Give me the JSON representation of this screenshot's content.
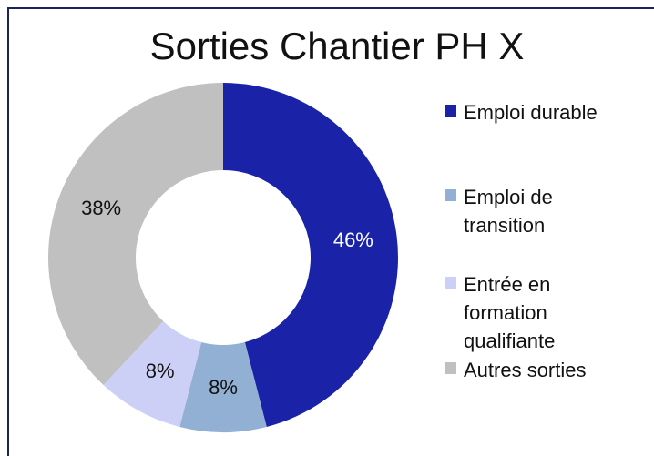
{
  "chart_data": {
    "type": "donut",
    "title": "Sorties Chantier PH X",
    "categories": [
      "Emploi durable",
      "Emploi de transition",
      "Entrée en formation qualifiante",
      "Autres sorties"
    ],
    "values": [
      46,
      8,
      8,
      38
    ],
    "value_labels": [
      "46%",
      "8%",
      "8%",
      "38%"
    ],
    "colors": [
      "#1a22a8",
      "#92b0d4",
      "#cdd0f6",
      "#c0c0c0"
    ],
    "legend": "right"
  }
}
